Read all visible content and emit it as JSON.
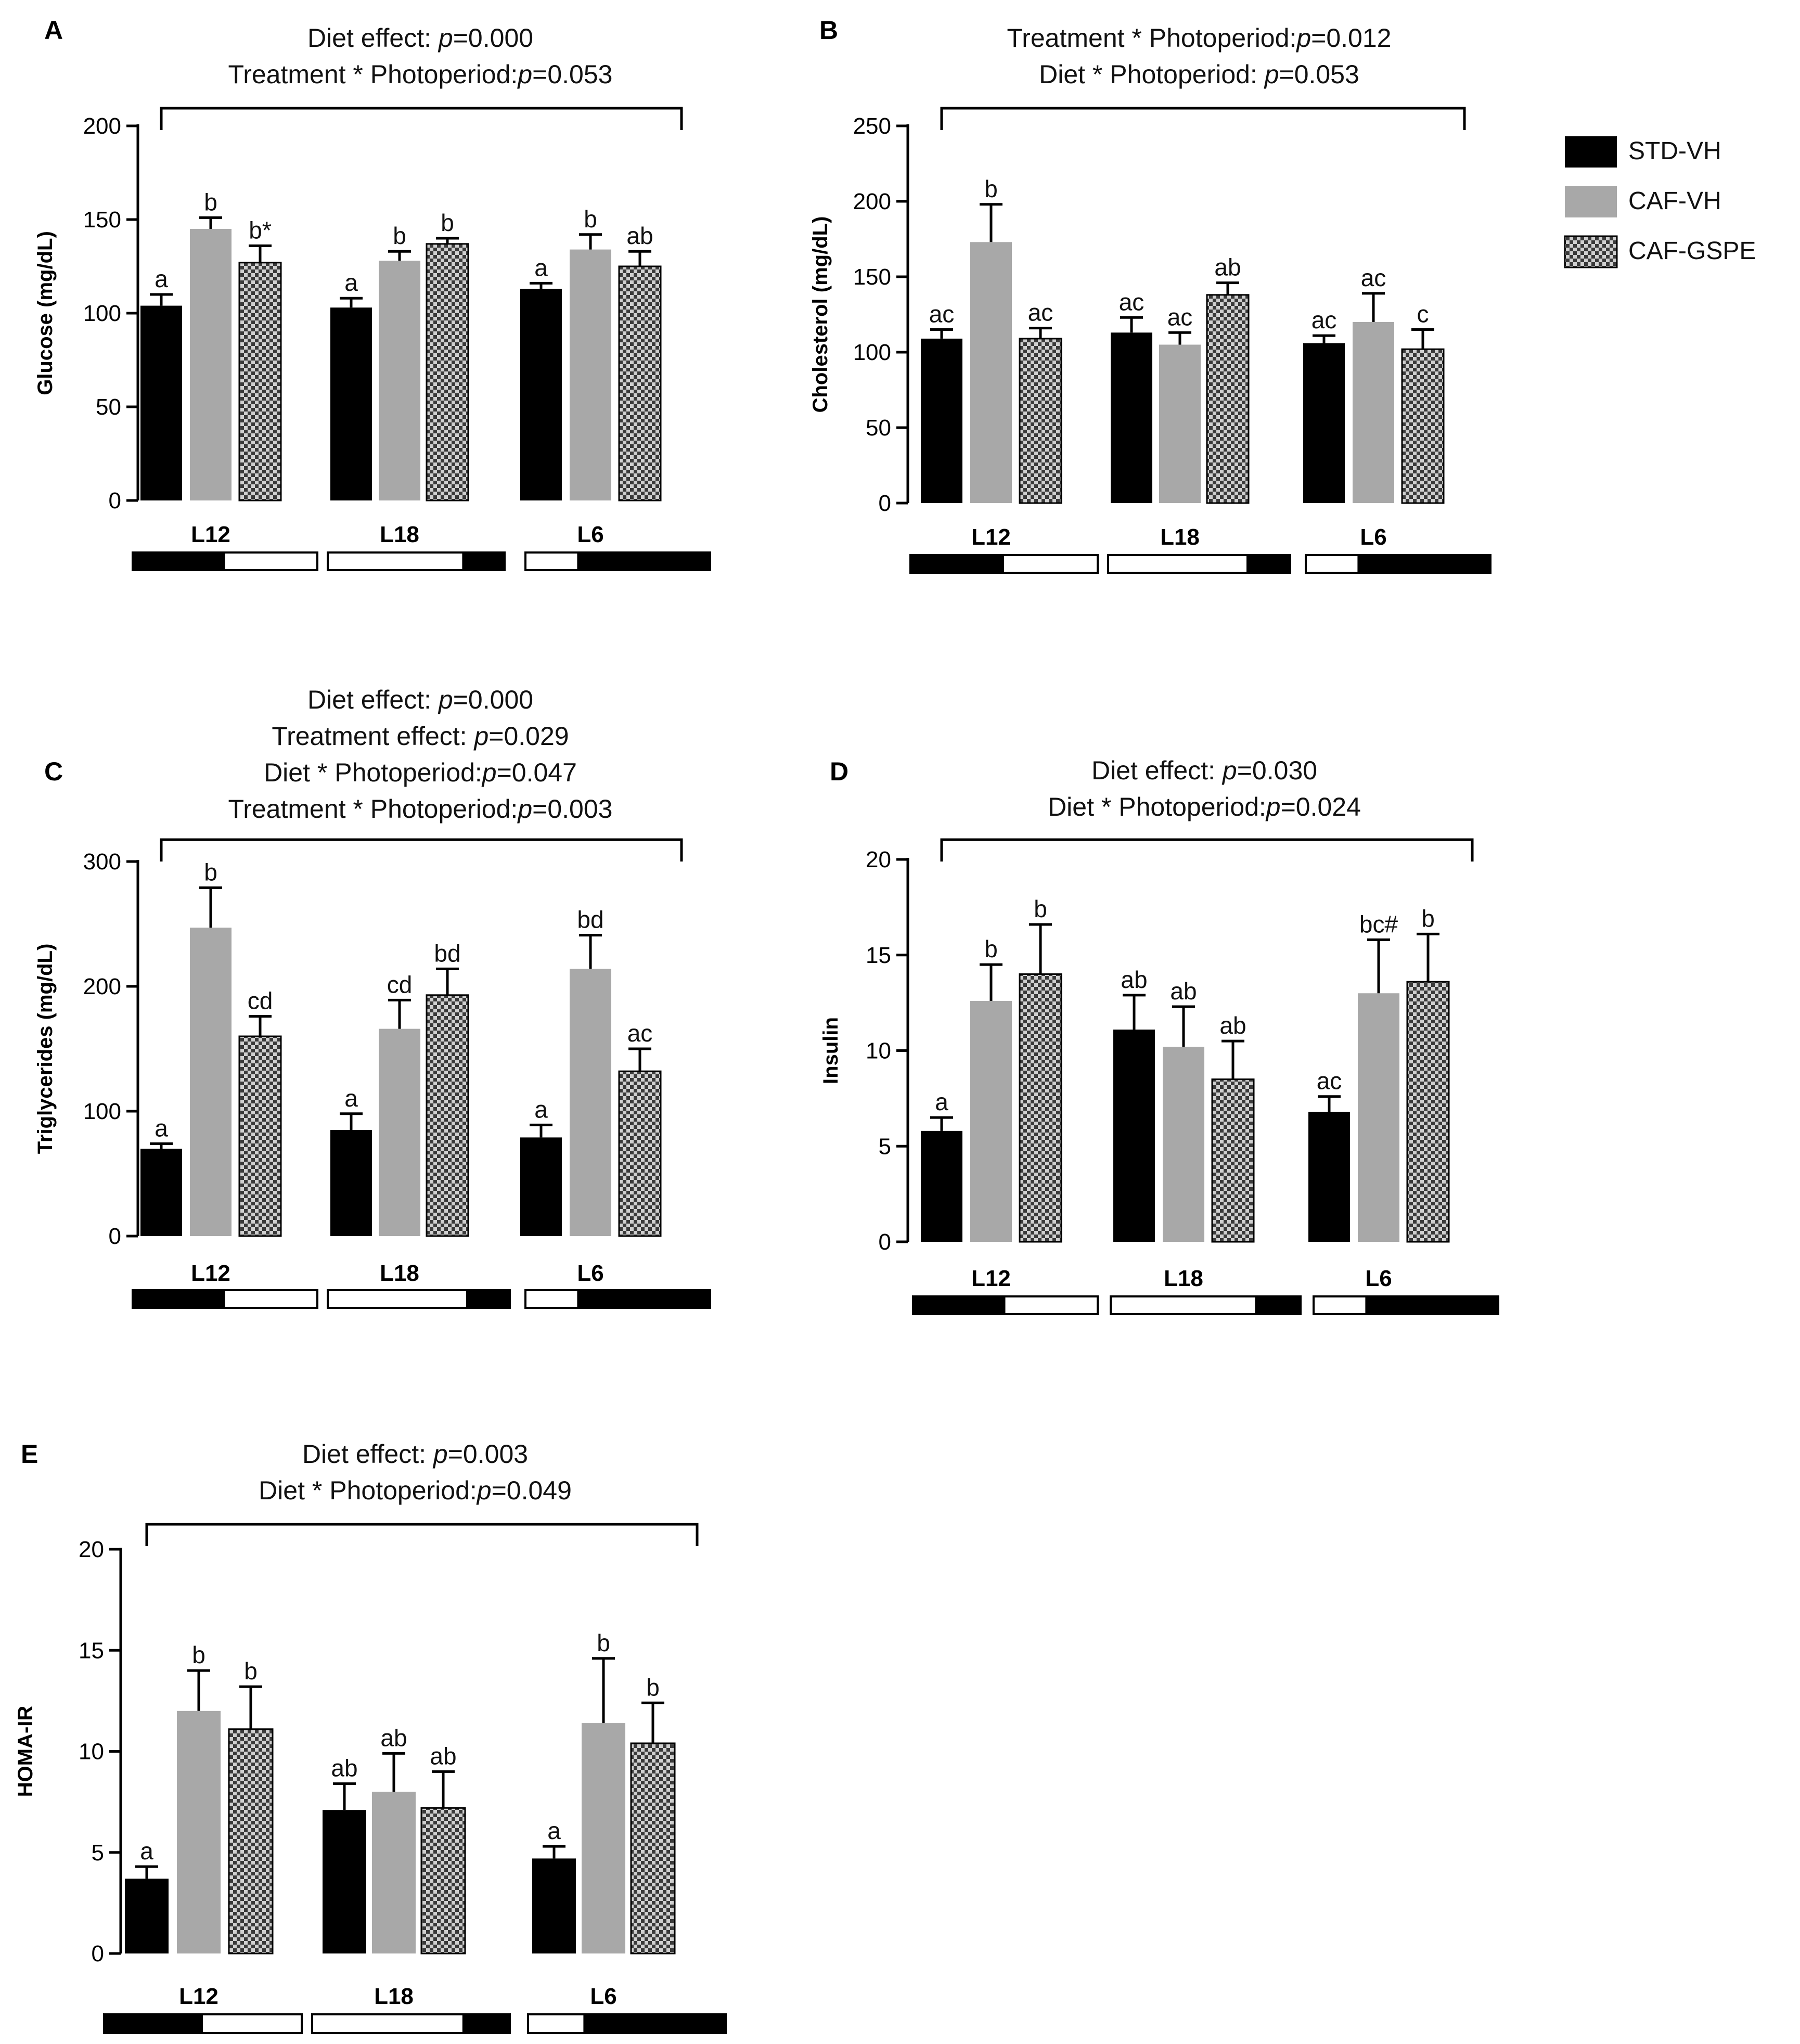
{
  "legend": [
    {
      "name": "STD-VH",
      "color": "#000000"
    },
    {
      "name": "CAF-VH",
      "color": "#a8a8a8"
    },
    {
      "name": "CAF-GSPE",
      "color": "checker"
    }
  ],
  "chart_data": [
    {
      "type": "bar",
      "panel": "A",
      "title_lines": [
        "Diet effect: p=0.000",
        "Treatment * Photoperiod:p=0.053"
      ],
      "ylabel": "Glucose (mg/dL)",
      "ylim": [
        0,
        200
      ],
      "yticks": [
        0,
        50,
        100,
        150,
        200
      ],
      "categories": [
        "L12",
        "L18",
        "L6"
      ],
      "series": [
        {
          "name": "STD-VH",
          "values": [
            104,
            103,
            113
          ],
          "errors": [
            6,
            5,
            3
          ],
          "letters": [
            "a",
            "a",
            "a"
          ]
        },
        {
          "name": "CAF-VH",
          "values": [
            145,
            128,
            134
          ],
          "errors": [
            6,
            5,
            8
          ],
          "letters": [
            "b",
            "b",
            "b"
          ]
        },
        {
          "name": "CAF-GSPE",
          "values": [
            127,
            137,
            125
          ],
          "errors": [
            9,
            3,
            8
          ],
          "letters": [
            "b*",
            "b",
            "ab"
          ]
        }
      ]
    },
    {
      "type": "bar",
      "panel": "B",
      "title_lines": [
        "Treatment * Photoperiod:p=0.012",
        "Diet * Photoperiod: p=0.053"
      ],
      "ylabel": "Cholesterol (mg/dL)",
      "ylim": [
        0,
        250
      ],
      "yticks": [
        0,
        50,
        100,
        150,
        200,
        250
      ],
      "categories": [
        "L12",
        "L18",
        "L6"
      ],
      "series": [
        {
          "name": "STD-VH",
          "values": [
            109,
            113,
            106
          ],
          "errors": [
            6,
            10,
            5
          ],
          "letters": [
            "ac",
            "ac",
            "ac"
          ]
        },
        {
          "name": "CAF-VH",
          "values": [
            173,
            105,
            120
          ],
          "errors": [
            25,
            8,
            19
          ],
          "letters": [
            "b",
            "ac",
            "ac"
          ]
        },
        {
          "name": "CAF-GSPE",
          "values": [
            109,
            138,
            102
          ],
          "errors": [
            7,
            8,
            13
          ],
          "letters": [
            "ac",
            "ab",
            "c"
          ]
        }
      ]
    },
    {
      "type": "bar",
      "panel": "C",
      "title_lines": [
        "Diet effect: p=0.000",
        "Treatment effect: p=0.029",
        "Diet * Photoperiod:p=0.047",
        "Treatment * Photoperiod:p=0.003"
      ],
      "ylabel": "Triglycerides (mg/dL)",
      "ylim": [
        0,
        300
      ],
      "yticks": [
        0,
        100,
        200,
        300
      ],
      "categories": [
        "L12",
        "L18",
        "L6"
      ],
      "series": [
        {
          "name": "STD-VH",
          "values": [
            70,
            85,
            79
          ],
          "errors": [
            4,
            13,
            10
          ],
          "letters": [
            "a",
            "a",
            "a"
          ]
        },
        {
          "name": "CAF-VH",
          "values": [
            247,
            166,
            214
          ],
          "errors": [
            32,
            23,
            27
          ],
          "letters": [
            "b",
            "cd",
            "bd"
          ]
        },
        {
          "name": "CAF-GSPE",
          "values": [
            160,
            193,
            132
          ],
          "errors": [
            16,
            21,
            18
          ],
          "letters": [
            "cd",
            "bd",
            "ac"
          ]
        }
      ]
    },
    {
      "type": "bar",
      "panel": "D",
      "title_lines": [
        "Diet effect: p=0.030",
        "Diet * Photoperiod:p=0.024"
      ],
      "ylabel": "Insulin",
      "ylim": [
        0,
        20
      ],
      "yticks": [
        0,
        5,
        10,
        15,
        20
      ],
      "categories": [
        "L12",
        "L18",
        "L6"
      ],
      "series": [
        {
          "name": "STD-VH",
          "values": [
            5.8,
            11.1,
            6.8
          ],
          "errors": [
            0.7,
            1.8,
            0.8
          ],
          "letters": [
            "a",
            "ab",
            "ac"
          ]
        },
        {
          "name": "CAF-VH",
          "values": [
            12.6,
            10.2,
            13.0
          ],
          "errors": [
            1.9,
            2.1,
            2.8
          ],
          "letters": [
            "b",
            "ab",
            "bc#"
          ]
        },
        {
          "name": "CAF-GSPE",
          "values": [
            14.0,
            8.5,
            13.6
          ],
          "errors": [
            2.6,
            2.0,
            2.5
          ],
          "letters": [
            "b",
            "ab",
            "b"
          ]
        }
      ]
    },
    {
      "type": "bar",
      "panel": "E",
      "title_lines": [
        "Diet effect: p=0.003",
        "Diet * Photoperiod:p=0.049"
      ],
      "ylabel": "HOMA-IR",
      "ylim": [
        0,
        20
      ],
      "yticks": [
        0,
        5,
        10,
        15,
        20
      ],
      "categories": [
        "L12",
        "L18",
        "L6"
      ],
      "series": [
        {
          "name": "STD-VH",
          "values": [
            3.7,
            7.1,
            4.7
          ],
          "errors": [
            0.6,
            1.3,
            0.6
          ],
          "letters": [
            "a",
            "ab",
            "a"
          ]
        },
        {
          "name": "CAF-VH",
          "values": [
            12.0,
            8.0,
            11.4
          ],
          "errors": [
            2.0,
            1.9,
            3.2
          ],
          "letters": [
            "b",
            "ab",
            "b"
          ]
        },
        {
          "name": "CAF-GSPE",
          "values": [
            11.1,
            7.2,
            10.4
          ],
          "errors": [
            2.1,
            1.8,
            2.0
          ],
          "letters": [
            "b",
            "ab",
            "b"
          ]
        }
      ]
    }
  ]
}
